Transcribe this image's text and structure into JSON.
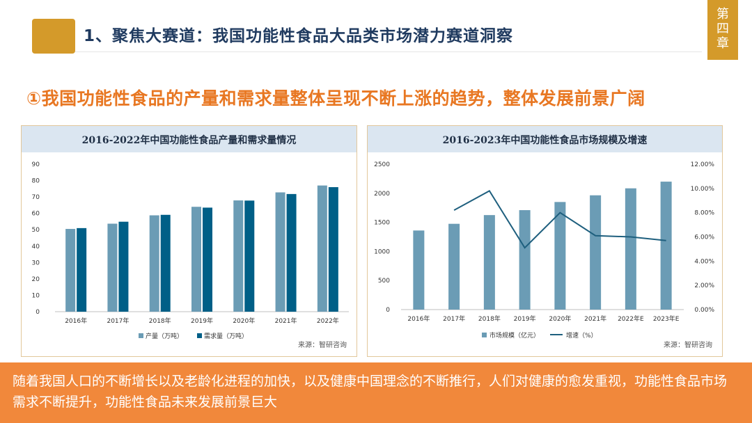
{
  "header": {
    "title": "1、聚焦大赛道：我国功能性食品大品类市场潜力赛道洞察",
    "chapter": [
      "第",
      "四",
      "章"
    ]
  },
  "subtitle": "①我国功能性食品的产量和需求量整体呈现不断上涨的趋势，整体发展前景广阔",
  "colors": {
    "accent": "#d49a2a",
    "orange": "#f1883b",
    "subtitle": "#e87722",
    "bar_light": "#6b9cb5",
    "bar_dark": "#005f87",
    "line": "#1e5f7e"
  },
  "chart_data": [
    {
      "type": "bar",
      "title": "2016-2022年中国功能性食品产量和需求量情况",
      "categories": [
        "2016年",
        "2017年",
        "2018年",
        "2019年",
        "2020年",
        "2021年",
        "2022年"
      ],
      "series": [
        {
          "name": "产量（万吨）",
          "values": [
            50.5,
            53.7,
            58.8,
            64.0,
            67.9,
            72.8,
            77.0
          ]
        },
        {
          "name": "需求量（万吨）",
          "values": [
            51.0,
            54.9,
            59.1,
            63.5,
            67.8,
            71.8,
            76.0
          ]
        }
      ],
      "ylim": [
        0,
        90
      ],
      "yticks": [
        "0",
        "10",
        "20",
        "30",
        "40",
        "50",
        "60",
        "70",
        "80",
        "90"
      ],
      "legend": "bottom",
      "source": "来源：智研咨询"
    },
    {
      "type": "bar",
      "title": "2016-2023年中国功能性食品市场规模及增速",
      "categories": [
        "2016年",
        "2017年",
        "2018年",
        "2019年",
        "2020年",
        "2021年",
        "2022年E",
        "2023年E"
      ],
      "series": [
        {
          "name": "市场规模（亿元）",
          "type": "bar",
          "axis": "left",
          "values": [
            1360,
            1475,
            1625,
            1710,
            1850,
            1965,
            2085,
            2200
          ]
        },
        {
          "name": "增速（%）",
          "type": "line",
          "axis": "right",
          "values": [
            null,
            8.2,
            9.8,
            5.1,
            8.0,
            6.1,
            6.0,
            5.7
          ]
        }
      ],
      "ylim": [
        0,
        2500
      ],
      "y2lim": [
        0,
        12
      ],
      "yticks": [
        "0",
        "500",
        "1000",
        "1500",
        "2000",
        "2500"
      ],
      "y2ticks": [
        "0.00%",
        "2.00%",
        "4.00%",
        "6.00%",
        "8.00%",
        "10.00%",
        "12.00%"
      ],
      "legend": "bottom",
      "source": "来源：智研咨询"
    }
  ],
  "footer": {
    "text": "随着我国人口的不断增长以及老龄化进程的加快，以及健康中国理念的不断推行，人们对健康的愈发重视，功能性食品市场需求不断提升，功能性食品未来发展前景巨大"
  }
}
